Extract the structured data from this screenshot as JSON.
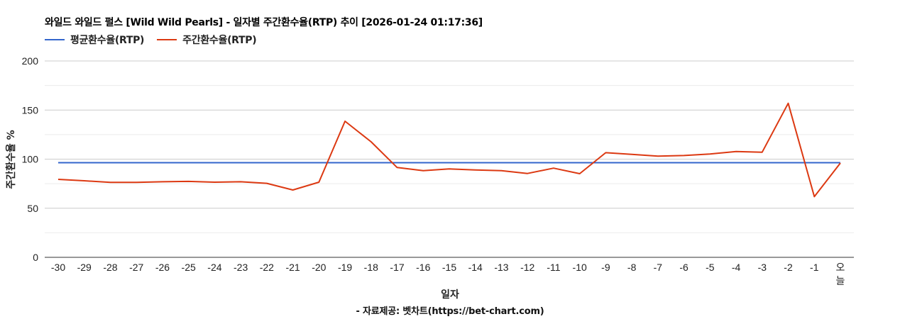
{
  "header": {
    "title": "와일드 와일드 펄스 [Wild Wild Pearls] - 일자별 주간환수율(RTP) 추이 [2026-01-24 01:17:36]"
  },
  "legend": [
    {
      "label": "평균환수율(RTP)",
      "color": "#3366cc"
    },
    {
      "label": "주간환수율(RTP)",
      "color": "#dc3912"
    }
  ],
  "axes": {
    "ylabel": "주간환수율 %",
    "xlabel": "일자"
  },
  "footer": {
    "source": "- 자료제공: 벳차트(https://bet-chart.com)"
  },
  "chart_data": {
    "type": "line",
    "title": "와일드 와일드 펄스 [Wild Wild Pearls] - 일자별 주간환수율(RTP) 추이 [2026-01-24 01:17:36]",
    "xlabel": "일자",
    "ylabel": "주간환수율 %",
    "ylim": [
      0,
      200
    ],
    "yticks": [
      0,
      50,
      100,
      150,
      200
    ],
    "grid": true,
    "legend_position": "top",
    "categories": [
      "-30",
      "-29",
      "-28",
      "-27",
      "-26",
      "-25",
      "-24",
      "-23",
      "-22",
      "-21",
      "-20",
      "-19",
      "-18",
      "-17",
      "-16",
      "-15",
      "-14",
      "-13",
      "-12",
      "-11",
      "-10",
      "-9",
      "-8",
      "-7",
      "-6",
      "-5",
      "-4",
      "-3",
      "-2",
      "-1",
      "오늘"
    ],
    "series": [
      {
        "name": "평균환수율(RTP)",
        "color": "#3366cc",
        "values": [
          96.4,
          96.4,
          96.4,
          96.4,
          96.4,
          96.4,
          96.4,
          96.4,
          96.4,
          96.4,
          96.4,
          96.4,
          96.4,
          96.4,
          96.4,
          96.4,
          96.4,
          96.4,
          96.4,
          96.4,
          96.4,
          96.4,
          96.4,
          96.4,
          96.4,
          96.4,
          96.4,
          96.4,
          96.4,
          96.4,
          96.4
        ]
      },
      {
        "name": "주간환수율(RTP)",
        "color": "#dc3912",
        "values": [
          79.4,
          78.0,
          76.3,
          76.3,
          77.0,
          77.3,
          76.5,
          77.0,
          75.4,
          68.6,
          76.5,
          138.6,
          117.7,
          91.5,
          88.3,
          90.0,
          89.0,
          88.3,
          85.4,
          90.8,
          85.2,
          106.6,
          104.9,
          103.0,
          103.7,
          105.2,
          107.8,
          107.1,
          156.9,
          61.8,
          96.0
        ]
      }
    ]
  }
}
